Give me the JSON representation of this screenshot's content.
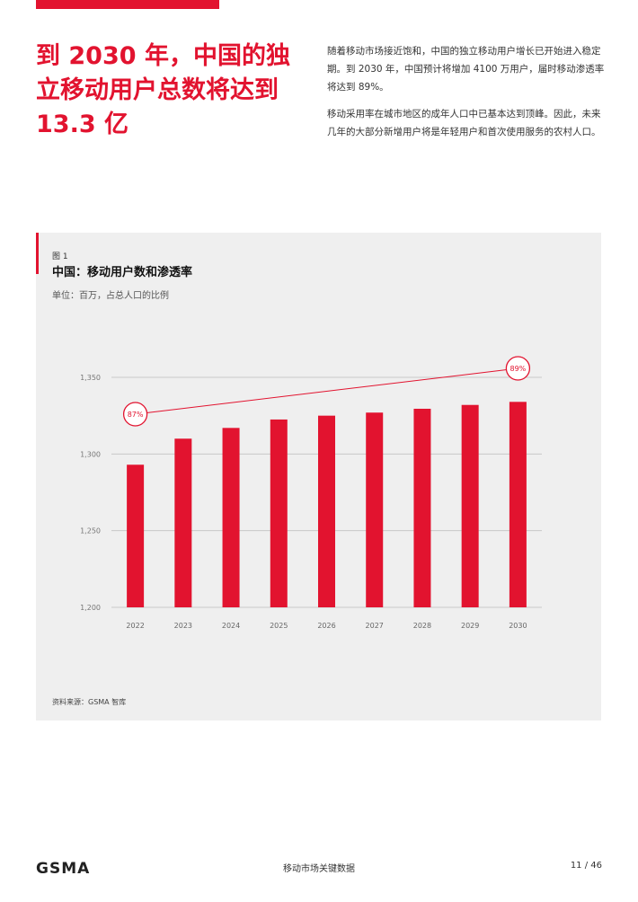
{
  "headline": "到 2030 年，中国的独立移动用户总数将达到 13.3 亿",
  "intro": {
    "p1": "随着移动市场接近饱和，中国的独立移动用户增长已开始进入稳定期。到 2030 年，中国预计将增加 4100 万用户，届时移动渗透率将达到 89%。",
    "p2": "移动采用率在城市地区的成年人口中已基本达到顶峰。因此，未来几年的大部分新增用户将是年轻用户和首次使用服务的农村人口。"
  },
  "figure": {
    "label": "图 1",
    "source": "资料来源：GSMA 智库"
  },
  "colors": {
    "accent": "#e2132f",
    "panel_bg": "#efefef",
    "grid": "#c8c8c8"
  },
  "chart_data": {
    "type": "bar",
    "title": "中国：移动用户数和渗透率",
    "subtitle": "单位：百万，占总人口的比例",
    "categories": [
      "2022",
      "2023",
      "2024",
      "2025",
      "2026",
      "2027",
      "2028",
      "2029",
      "2030"
    ],
    "series": [
      {
        "values": [
          1293,
          1310,
          1317,
          1322.5,
          1325,
          1327,
          1329.5,
          1332,
          1334
        ]
      }
    ],
    "yticks": [
      1200,
      1250,
      1300,
      1350
    ],
    "ytick_labels": [
      "1,200",
      "1,250",
      "1,300",
      "1,350"
    ],
    "ylim": [
      1200,
      1350
    ],
    "penetration_line": {
      "start_year": "2022",
      "end_year": "2030",
      "start_label": "87%",
      "end_label": "89%"
    },
    "grid": true,
    "legend": "none"
  },
  "footer": {
    "logo": "GSMA",
    "center": "移动市场关键数据",
    "page": "11 / 46"
  }
}
